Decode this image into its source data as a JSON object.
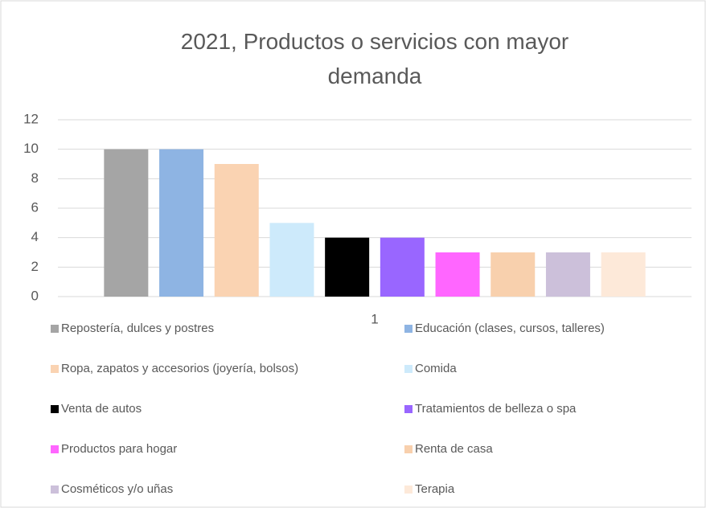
{
  "chart_data": {
    "type": "bar",
    "title": "2021, Productos o servicios con mayor demanda",
    "categories": [
      "1"
    ],
    "series": [
      {
        "name": "Repostería, dulces y postres",
        "color": "#a5a5a5",
        "values": [
          10
        ]
      },
      {
        "name": "Educación (clases, cursos, talleres)",
        "color": "#8eb4e3",
        "values": [
          10
        ]
      },
      {
        "name": "Ropa, zapatos y accesorios (joyería, bolsos)",
        "color": "#fad3b2",
        "values": [
          9
        ]
      },
      {
        "name": "Comida",
        "color": "#cdeafb",
        "values": [
          5
        ]
      },
      {
        "name": "Venta de autos",
        "color": "#000000",
        "values": [
          4
        ]
      },
      {
        "name": "Tratamientos de belleza o spa",
        "color": "#9966ff",
        "values": [
          4
        ]
      },
      {
        "name": "Productos para hogar",
        "color": "#ff66ff",
        "values": [
          3
        ]
      },
      {
        "name": "Renta de casa",
        "color": "#f8d0ad",
        "values": [
          3
        ]
      },
      {
        "name": "Cosméticos y/o uñas",
        "color": "#ccc0da",
        "values": [
          3
        ]
      },
      {
        "name": "Terapia",
        "color": "#fde9d9",
        "values": [
          3
        ]
      }
    ],
    "ylim": [
      0,
      12
    ],
    "yticks": [
      0,
      2,
      4,
      6,
      8,
      10,
      12
    ],
    "grid": true,
    "legend": "bottom"
  }
}
